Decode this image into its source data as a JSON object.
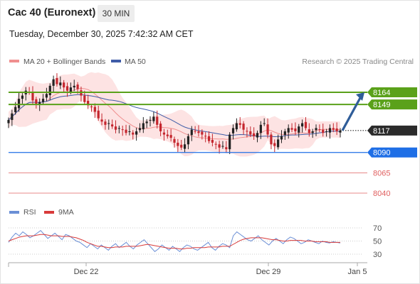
{
  "header": {
    "title": "Cac 40 (Euronext)",
    "timeframe": "30 MIN",
    "timestamp": "Tuesday, December 30, 2025 7:42:32 AM CET"
  },
  "legend": {
    "ma20_label": "MA 20 + Bollinger Bands",
    "ma50_label": "MA 50",
    "credit": "Research © 2025 Trading Central",
    "rsi_label": "RSI",
    "rsi9_label": "9MA"
  },
  "colors": {
    "resistance": "#5aa11a",
    "support": "#1f6fe6",
    "lower_levels": "#e06060",
    "last_price": "#2b2b2b",
    "arrow": "#2f5d99",
    "ma20": "#f08f8f",
    "ma50": "#3f5da8",
    "bollinger_fill": "#fde3e3",
    "candle_up": "#222222",
    "candle_down": "#c4262e",
    "rsi": "#6b8fd6",
    "rsi_ma": "#d83a3a"
  },
  "chart_data": {
    "type": "candlestick",
    "x_tick_labels": [
      "Dec 22",
      "Dec 29",
      "Jan 5"
    ],
    "y_range": [
      8030,
      8190
    ],
    "levels": [
      {
        "value": 8164,
        "label": "8164",
        "kind": "resistance"
      },
      {
        "value": 8149,
        "label": "8149",
        "kind": "resistance"
      },
      {
        "value": 8117,
        "label": "8117",
        "kind": "last"
      },
      {
        "value": 8090,
        "label": "8090",
        "kind": "support"
      },
      {
        "value": 8065,
        "label": "8065",
        "kind": "level"
      },
      {
        "value": 8040,
        "label": "8040",
        "kind": "level"
      }
    ],
    "forecast_arrow": {
      "from": 8117,
      "to": 8164
    },
    "price_series": [
      8130,
      8138,
      8146,
      8156,
      8160,
      8166,
      8164,
      8154,
      8150,
      8152,
      8156,
      8162,
      8172,
      8180,
      8174,
      8176,
      8170,
      8166,
      8170,
      8172,
      8168,
      8160,
      8152,
      8148,
      8146,
      8140,
      8132,
      8128,
      8124,
      8126,
      8122,
      8118,
      8120,
      8118,
      8114,
      8116,
      8112,
      8116,
      8120,
      8126,
      8128,
      8130,
      8134,
      8124,
      8116,
      8112,
      8110,
      8108,
      8102,
      8098,
      8096,
      8100,
      8110,
      8118,
      8116,
      8114,
      8112,
      8110,
      8104,
      8102,
      8100,
      8096,
      8098,
      8094,
      8112,
      8120,
      8126,
      8124,
      8118,
      8116,
      8112,
      8110,
      8114,
      8124,
      8126,
      8112,
      8100,
      8098,
      8106,
      8110,
      8116,
      8120,
      8118,
      8116,
      8122,
      8126,
      8120,
      8114,
      8116,
      8120,
      8118,
      8114,
      8116,
      8120,
      8118,
      8116,
      8117
    ],
    "rsi": {
      "y_ticks": [
        70,
        50,
        30
      ],
      "values": [
        48,
        56,
        62,
        58,
        64,
        60,
        55,
        58,
        62,
        66,
        60,
        54,
        58,
        62,
        57,
        52,
        60,
        58,
        54,
        50,
        48,
        44,
        40,
        46,
        42,
        38,
        44,
        40,
        36,
        42,
        46,
        40,
        44,
        48,
        42,
        38,
        44,
        48,
        52,
        46,
        40,
        34,
        38,
        44,
        40,
        36,
        42,
        38,
        34,
        40,
        44,
        42,
        38,
        36,
        40,
        44,
        48,
        40,
        36,
        42,
        46,
        44,
        40,
        58,
        64,
        60,
        56,
        52,
        50,
        54,
        58,
        52,
        48,
        44,
        50,
        54,
        50,
        46,
        52,
        56,
        54,
        50,
        46,
        48,
        52,
        50,
        48,
        46,
        50,
        48,
        47,
        49,
        48,
        47
      ],
      "ma_values": [
        50,
        52,
        54,
        56,
        57,
        58,
        58,
        58,
        59,
        60,
        60,
        59,
        58,
        58,
        58,
        57,
        57,
        57,
        56,
        55,
        53,
        51,
        48,
        46,
        44,
        42,
        42,
        41,
        40,
        40,
        41,
        41,
        41,
        42,
        42,
        42,
        42,
        43,
        44,
        45,
        44,
        43,
        42,
        41,
        40,
        39,
        39,
        39,
        38,
        38,
        39,
        39,
        40,
        40,
        40,
        40,
        41,
        41,
        41,
        41,
        42,
        42,
        42,
        45,
        48,
        51,
        53,
        54,
        55,
        55,
        55,
        55,
        54,
        53,
        52,
        52,
        51,
        50,
        50,
        51,
        51,
        51,
        51,
        50,
        50,
        50,
        49,
        49,
        49,
        49,
        48,
        48,
        48,
        48
      ]
    }
  }
}
